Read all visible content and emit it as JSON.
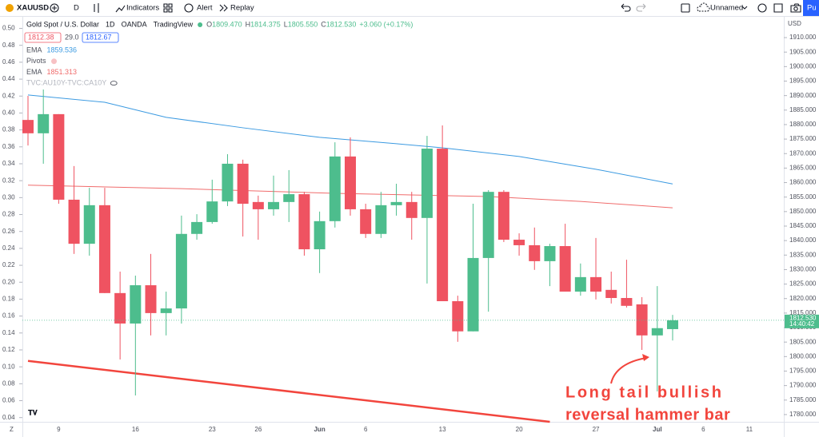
{
  "toolbar": {
    "symbol": "XAUUSD",
    "interval": "D",
    "indicators": "Indicators",
    "alert": "Alert",
    "replay": "Replay",
    "layout": "Unnamed",
    "publish": "Pu"
  },
  "legend": {
    "name": "Gold Spot / U.S. Dollar",
    "interval": "1D",
    "exchange": "OANDA",
    "source": "TradingView",
    "ohlc": [
      {
        "key": "O",
        "value": "1809.470"
      },
      {
        "key": "H",
        "value": "1814.375"
      },
      {
        "key": "L",
        "value": "1805.550"
      },
      {
        "key": "C",
        "value": "1812.530"
      }
    ],
    "change": "+3.060 (+0.17%)",
    "sell": "1812.38",
    "spread": "29.0",
    "buy": "1812.67",
    "indicators": [
      {
        "name": "EMA",
        "value": "1859.536",
        "color": "#3b9ae1"
      },
      {
        "name": "Pivots"
      },
      {
        "name": "EMA",
        "value": "1851.313",
        "color": "#f06c6c"
      },
      {
        "name": "TVC:AU10Y-TVC:CA10Y"
      }
    ]
  },
  "chart_data": {
    "type": "candlestick",
    "currency": "USD",
    "up_color": "#4dbd8d",
    "down_color": "#ef5361",
    "categories": [
      null,
      null,
      "9",
      null,
      null,
      null,
      null,
      "16",
      null,
      null,
      null,
      null,
      "23",
      null,
      null,
      "26",
      null,
      null,
      null,
      "Jun",
      null,
      null,
      "6",
      null,
      null,
      null,
      null,
      "13",
      null,
      null,
      null,
      null,
      "20",
      null,
      null,
      null,
      null,
      "27",
      null,
      null,
      null,
      "Jul",
      null,
      null,
      "6",
      null,
      null,
      "11"
    ],
    "open": [
      1881.6,
      1877.0,
      1883.6,
      1854.1,
      1838.9,
      1852.2,
      1821.9,
      1811.4,
      1824.6,
      1815.0,
      1816.6,
      1842.3,
      1846.4,
      1853.5,
      1866.5,
      1853.3,
      1850.8,
      1853.3,
      1856.0,
      1837.0,
      1846.7,
      1869.0,
      1850.8,
      1842.3,
      1852.2,
      1853.3,
      1847.8,
      1871.7,
      1819.1,
      1808.7,
      1834.0,
      1856.8,
      1840.3,
      1838.4,
      1832.9,
      1838.1,
      1822.4,
      1827.4,
      1823.0,
      1820.2,
      1818.0,
      1807.3,
      1809.47,
      null,
      null,
      null,
      null,
      null
    ],
    "high": [
      1889.9,
      1892.1,
      1883.6,
      1865.7,
      1858.2,
      1858.2,
      1829.3,
      1827.9,
      1835.4,
      1822.4,
      1848.6,
      1849.1,
      1861.0,
      1869.8,
      1867.9,
      1855.5,
      1862.4,
      1864.3,
      1856.8,
      1850.0,
      1873.9,
      1875.6,
      1852.7,
      1856.8,
      1859.6,
      1856.8,
      1876.1,
      1879.7,
      1821.0,
      1852.7,
      1857.4,
      1857.4,
      1842.5,
      1844.5,
      1838.9,
      1845.8,
      1832.1,
      1840.9,
      1829.3,
      1833.4,
      1820.5,
      1824.3,
      1814.375,
      null,
      null,
      null,
      null,
      null
    ],
    "low": [
      1872.8,
      1866.5,
      1852.7,
      1835.4,
      1834.8,
      1821.9,
      1799.0,
      1786.6,
      1807.3,
      1807.3,
      1811.4,
      1840.3,
      1845.8,
      1851.9,
      1841.4,
      1840.3,
      1848.6,
      1846.4,
      1834.8,
      1828.8,
      1844.5,
      1848.6,
      1840.9,
      1840.9,
      1848.6,
      1840.3,
      1825.2,
      1819.1,
      1805.1,
      1808.7,
      1815.5,
      1839.5,
      1834.8,
      1829.9,
      1824.3,
      1822.4,
      1821.0,
      1819.7,
      1818.3,
      1816.9,
      1802.3,
      1788.0,
      1805.55,
      null,
      null,
      null,
      null,
      null
    ],
    "close": [
      1877.0,
      1883.6,
      1854.1,
      1838.9,
      1852.2,
      1821.9,
      1811.4,
      1824.6,
      1815.0,
      1816.6,
      1842.3,
      1846.4,
      1853.5,
      1866.5,
      1852.7,
      1850.8,
      1853.3,
      1856.0,
      1837.0,
      1846.7,
      1869.0,
      1850.8,
      1842.3,
      1852.2,
      1853.3,
      1847.8,
      1871.7,
      1819.1,
      1808.7,
      1834.0,
      1856.8,
      1840.3,
      1838.4,
      1832.9,
      1838.1,
      1822.4,
      1827.4,
      1822.4,
      1820.2,
      1817.5,
      1807.3,
      1809.8,
      1812.53,
      null,
      null,
      null,
      null,
      null
    ],
    "lines": [
      {
        "name": "EMA",
        "color": "#3b9ae1",
        "x": [
          0,
          5,
          9,
          14,
          19,
          24,
          27,
          32,
          37,
          42
        ],
        "values": [
          1890.2,
          1887.7,
          1882.5,
          1878.9,
          1875.6,
          1873.4,
          1872.0,
          1869.0,
          1864.6,
          1859.536
        ]
      },
      {
        "name": "EMA",
        "color": "#f06c6c",
        "x": [
          0,
          10,
          20,
          30,
          36,
          42
        ],
        "values": [
          1859.1,
          1857.9,
          1856.3,
          1855.2,
          1853.5,
          1851.313
        ]
      }
    ],
    "trend_line": {
      "color": "#f2453d",
      "x": [
        0,
        34
      ],
      "values": [
        1798.5,
        1777.5
      ]
    },
    "last_price": {
      "label": "1812.530",
      "time": "14:40:42",
      "value": 1812.53
    },
    "ylim": [
      1777.5,
      1915.8
    ],
    "yticks": [
      {
        "value": 1780,
        "label": "1780.000"
      },
      {
        "value": 1785,
        "label": "1785.000"
      },
      {
        "value": 1790,
        "label": "1790.000"
      },
      {
        "value": 1795,
        "label": "1795.000"
      },
      {
        "value": 1800,
        "label": "1800.000"
      },
      {
        "value": 1805,
        "label": "1805.000"
      },
      {
        "value": 1810,
        "label": "1810.000"
      },
      {
        "value": 1815,
        "label": "1815.000"
      },
      {
        "value": 1820,
        "label": "1820.000"
      },
      {
        "value": 1825,
        "label": "1825.000"
      },
      {
        "value": 1830,
        "label": "1830.000"
      },
      {
        "value": 1835,
        "label": "1835.000"
      },
      {
        "value": 1840,
        "label": "1840.000"
      },
      {
        "value": 1845,
        "label": "1845.000"
      },
      {
        "value": 1850,
        "label": "1850.000"
      },
      {
        "value": 1855,
        "label": "1855.000"
      },
      {
        "value": 1860,
        "label": "1860.000"
      },
      {
        "value": 1865,
        "label": "1865.000"
      },
      {
        "value": 1870,
        "label": "1870.000"
      },
      {
        "value": 1875,
        "label": "1875.000"
      },
      {
        "value": 1880,
        "label": "1880.000"
      },
      {
        "value": 1885,
        "label": "1885.000"
      },
      {
        "value": 1890,
        "label": "1890.000"
      },
      {
        "value": 1895,
        "label": "1895.000"
      },
      {
        "value": 1900,
        "label": "1900.000"
      },
      {
        "value": 1905,
        "label": "1905.000"
      },
      {
        "value": 1910,
        "label": "1910.000"
      }
    ],
    "y2lim": [
      0.035,
      0.509
    ],
    "y2ticks": [
      {
        "value": 0.04,
        "label": "0.04"
      },
      {
        "value": 0.06,
        "label": "0.06"
      },
      {
        "value": 0.08,
        "label": "0.08"
      },
      {
        "value": 0.1,
        "label": "0.10"
      },
      {
        "value": 0.12,
        "label": "0.12"
      },
      {
        "value": 0.14,
        "label": "0.14"
      },
      {
        "value": 0.16,
        "label": "0.16"
      },
      {
        "value": 0.18,
        "label": "0.18"
      },
      {
        "value": 0.2,
        "label": "0.20"
      },
      {
        "value": 0.22,
        "label": "0.22"
      },
      {
        "value": 0.24,
        "label": "0.24"
      },
      {
        "value": 0.26,
        "label": "0.26"
      },
      {
        "value": 0.28,
        "label": "0.28"
      },
      {
        "value": 0.3,
        "label": "0.30"
      },
      {
        "value": 0.32,
        "label": "0.32"
      },
      {
        "value": 0.34,
        "label": "0.34"
      },
      {
        "value": 0.36,
        "label": "0.36"
      },
      {
        "value": 0.38,
        "label": "0.38"
      },
      {
        "value": 0.4,
        "label": "0.40"
      },
      {
        "value": 0.42,
        "label": "0.42"
      },
      {
        "value": 0.44,
        "label": "0.44"
      },
      {
        "value": 0.46,
        "label": "0.46"
      },
      {
        "value": 0.48,
        "label": "0.48"
      },
      {
        "value": 0.5,
        "label": "0.50"
      }
    ],
    "annotation": [
      "Long tail bullish",
      "reversal hammer bar"
    ],
    "corner_label": "Z"
  }
}
